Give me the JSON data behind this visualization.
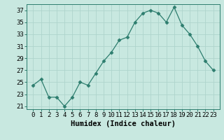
{
  "x": [
    0,
    1,
    2,
    3,
    4,
    5,
    6,
    7,
    8,
    9,
    10,
    11,
    12,
    13,
    14,
    15,
    16,
    17,
    18,
    19,
    20,
    21,
    22,
    23
  ],
  "y": [
    24.5,
    25.5,
    22.5,
    22.5,
    21,
    22.5,
    25,
    24.5,
    26.5,
    28.5,
    30,
    32,
    32.5,
    35,
    36.5,
    37,
    36.5,
    35,
    37.5,
    34.5,
    33,
    31,
    28.5,
    27
  ],
  "line_color": "#2d7d6e",
  "marker": "D",
  "marker_size": 2.5,
  "bg_color": "#c8e8e0",
  "grid_color": "#aed4cc",
  "xlabel": "Humidex (Indice chaleur)",
  "ylim": [
    20.5,
    38
  ],
  "yticks": [
    21,
    23,
    25,
    27,
    29,
    31,
    33,
    35,
    37
  ],
  "xticks": [
    0,
    1,
    2,
    3,
    4,
    5,
    6,
    7,
    8,
    9,
    10,
    11,
    12,
    13,
    14,
    15,
    16,
    17,
    18,
    19,
    20,
    21,
    22,
    23
  ],
  "tick_fontsize": 6.5,
  "label_fontsize": 7.5
}
